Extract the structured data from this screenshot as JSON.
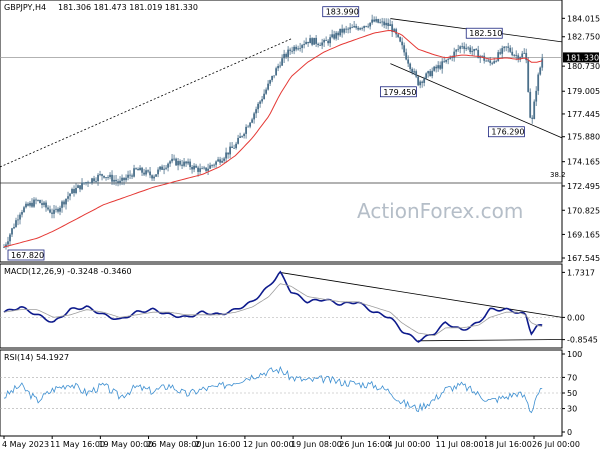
{
  "chart_data": [
    {
      "type": "candlestick",
      "title": "GBPJPY,H4",
      "ohlc_readout": "181.306 181.473 181.019 181.330",
      "ylim": [
        167.545,
        185.0
      ],
      "y_ticks": [
        "184.015",
        "182.750",
        "180.730",
        "179.005",
        "177.445",
        "175.880",
        "174.165",
        "172.495",
        "170.825",
        "169.165",
        "167.545"
      ],
      "current_price_label": "181.330",
      "fib_label": "38.2",
      "fib_level": 172.7,
      "horizontal_level": 181.33,
      "close_series_x": [
        0,
        0.03,
        0.06,
        0.09,
        0.12,
        0.15,
        0.18,
        0.21,
        0.24,
        0.27,
        0.3,
        0.33,
        0.36,
        0.39,
        0.42,
        0.45,
        0.48,
        0.5,
        0.52,
        0.55,
        0.58,
        0.61,
        0.64,
        0.67,
        0.7,
        0.72,
        0.75,
        0.78,
        0.8,
        0.83,
        0.86,
        0.88,
        0.91,
        0.93,
        0.945,
        0.955,
        0.965,
        0.975
      ],
      "close_series_y": [
        168.3,
        170.8,
        171.5,
        170.6,
        172.0,
        172.8,
        173.3,
        172.7,
        173.6,
        173.2,
        174.2,
        174.0,
        173.5,
        174.3,
        175.3,
        177.3,
        179.5,
        181.0,
        181.9,
        182.5,
        182.3,
        183.1,
        183.4,
        183.8,
        183.5,
        182.1,
        179.6,
        180.5,
        181.0,
        182.2,
        181.5,
        180.9,
        182.0,
        181.4,
        181.6,
        176.4,
        179.5,
        181.3
      ],
      "ema_series_y": [
        168.3,
        168.6,
        168.9,
        169.4,
        170.0,
        170.6,
        171.2,
        171.6,
        172.0,
        172.4,
        172.7,
        173.0,
        173.3,
        173.8,
        174.6,
        175.8,
        177.3,
        178.8,
        180.0,
        181.0,
        181.7,
        182.2,
        182.6,
        183.0,
        183.2,
        182.9,
        181.9,
        181.5,
        181.3,
        181.5,
        181.4,
        181.2,
        181.3,
        181.2,
        181.3,
        181.0,
        181.0,
        181.1
      ],
      "annotations": [
        {
          "label": "183.990",
          "x": 0.61,
          "y": 183.99
        },
        {
          "label": "182.510",
          "x": 0.87,
          "y": 182.51
        },
        {
          "label": "179.450",
          "x": 0.7,
          "y": 179.45
        },
        {
          "label": "176.290",
          "x": 0.95,
          "y": 176.29
        },
        {
          "label": "167.820",
          "x": 0.03,
          "y": 167.82
        }
      ]
    },
    {
      "type": "line",
      "title": "MACD(12,26,9) -0.3248 -0.3460",
      "ylim": [
        -1.1,
        1.9
      ],
      "y_ticks": [
        "1.7317",
        "0.00",
        "-0.8545"
      ],
      "x": [
        0,
        0.03,
        0.06,
        0.09,
        0.12,
        0.15,
        0.18,
        0.21,
        0.24,
        0.27,
        0.3,
        0.33,
        0.36,
        0.39,
        0.42,
        0.45,
        0.48,
        0.5,
        0.52,
        0.55,
        0.58,
        0.61,
        0.64,
        0.67,
        0.7,
        0.72,
        0.75,
        0.78,
        0.8,
        0.83,
        0.86,
        0.88,
        0.91,
        0.93,
        0.945,
        0.955,
        0.965,
        0.975
      ],
      "series": [
        {
          "name": "MACD",
          "values": [
            0.2,
            0.4,
            0.1,
            -0.2,
            0.3,
            0.4,
            0.1,
            -0.1,
            0.2,
            0.3,
            0.1,
            0.0,
            0.2,
            0.1,
            0.3,
            0.6,
            1.2,
            1.73,
            1.0,
            0.6,
            0.7,
            0.5,
            0.6,
            0.2,
            0.0,
            -0.5,
            -0.9,
            -0.6,
            -0.2,
            -0.5,
            -0.2,
            0.3,
            0.3,
            0.2,
            0.1,
            -0.6,
            -0.35,
            -0.32
          ]
        },
        {
          "name": "Signal",
          "values": [
            0.2,
            0.3,
            0.3,
            0.0,
            0.1,
            0.3,
            0.2,
            0.0,
            0.1,
            0.2,
            0.2,
            0.1,
            0.1,
            0.1,
            0.2,
            0.4,
            0.8,
            1.3,
            1.2,
            0.8,
            0.7,
            0.6,
            0.6,
            0.4,
            0.2,
            -0.2,
            -0.6,
            -0.7,
            -0.4,
            -0.4,
            -0.3,
            0.0,
            0.2,
            0.2,
            0.1,
            -0.2,
            -0.3,
            -0.35
          ]
        }
      ]
    },
    {
      "type": "line",
      "title": "RSI(14) 54.1927",
      "ylim": [
        0,
        100
      ],
      "y_ticks": [
        "100",
        "70",
        "50",
        "30",
        "0"
      ],
      "x": [
        0,
        0.03,
        0.06,
        0.09,
        0.12,
        0.15,
        0.18,
        0.21,
        0.24,
        0.27,
        0.3,
        0.33,
        0.36,
        0.39,
        0.42,
        0.45,
        0.48,
        0.5,
        0.52,
        0.55,
        0.58,
        0.61,
        0.64,
        0.67,
        0.7,
        0.72,
        0.75,
        0.78,
        0.8,
        0.83,
        0.86,
        0.88,
        0.91,
        0.93,
        0.945,
        0.955,
        0.965,
        0.975
      ],
      "series": [
        {
          "name": "RSI",
          "values": [
            45,
            60,
            40,
            55,
            62,
            50,
            60,
            45,
            58,
            52,
            60,
            48,
            55,
            58,
            65,
            72,
            78,
            80,
            70,
            66,
            68,
            64,
            62,
            60,
            52,
            38,
            30,
            42,
            55,
            60,
            48,
            40,
            45,
            50,
            44,
            25,
            48,
            54
          ]
        }
      ]
    }
  ],
  "x_axis_labels": [
    "4 May 2023",
    "11 May 16:00",
    "19 May 00:00",
    "26 May 08:00",
    "2 Jun 16:00",
    "12 Jun 00:00",
    "19 Jun 08:00",
    "26 Jun 16:00",
    "4 Jul 00:00",
    "11 Jul 08:00",
    "18 Jul 16:00",
    "26 Jul 00:00"
  ],
  "watermark": "ActionForex.com",
  "colors": {
    "candles": "#4a6f8a",
    "ema": "#e53935",
    "macd": "#0d1a8c",
    "signal": "#9e9e9e",
    "rsi": "#3d8fd1",
    "annotation_border": "#1a237e",
    "grid_dotted": "#000000"
  }
}
